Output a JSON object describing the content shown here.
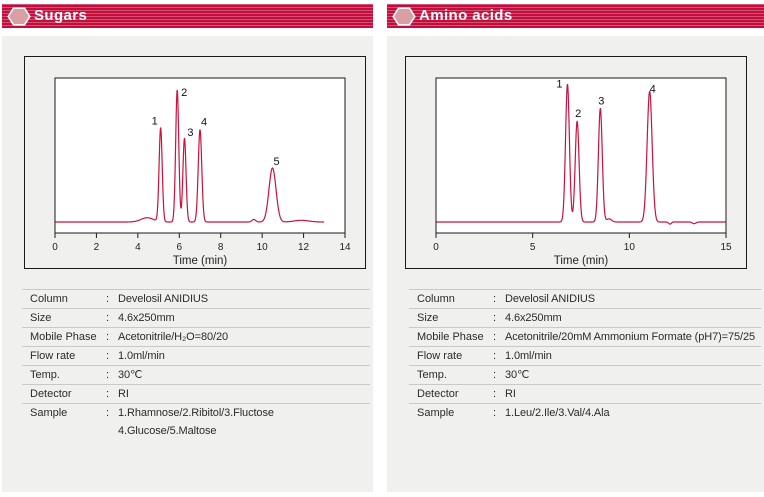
{
  "colors": {
    "band_base": "#c20e3c",
    "band_stripe": "rgba(255,255,255,0.28)",
    "band_text": "#ffffff",
    "hexagon_fill": "#d9a0a4",
    "hexagon_outline": "#ffffff",
    "panel_bg": "#f0f0ee",
    "frame_border": "#1a1a1a",
    "plot_bg": "#ffffff",
    "plot_border": "#1a1a1a",
    "trace": "#c9123c",
    "axis_text": "#1f1f1f",
    "table_text": "#2b2b2b",
    "table_divider": "#c9c9c9"
  },
  "panels": [
    {
      "title": "Sugars",
      "table": {
        "rows": [
          {
            "label": "Column",
            "value": "Develosil ANIDIUS"
          },
          {
            "label": "Size",
            "value": "4.6x250mm"
          },
          {
            "label": "Mobile Phase",
            "value": "Acetonitrile/H₂O=80/20"
          },
          {
            "label": "Flow rate",
            "value": "1.0ml/min"
          },
          {
            "label": "Temp.",
            "value": "30℃"
          },
          {
            "label": "Detector",
            "value": "RI"
          },
          {
            "label": "Sample",
            "value": "1.Rhamnose/2.Ribitol/3.Fluctose",
            "value2": "4.Glucose/5.Maltose"
          }
        ]
      }
    },
    {
      "title": "Amino acids",
      "table": {
        "rows": [
          {
            "label": "Column",
            "value": "Develosil ANIDIUS"
          },
          {
            "label": "Size",
            "value": "4.6x250mm"
          },
          {
            "label": "Mobile Phase",
            "value": "Acetonitrile/20mM Ammonium Formate (pH7)=75/25"
          },
          {
            "label": "Flow rate",
            "value": "1.0ml/min"
          },
          {
            "label": "Temp.",
            "value": "30℃"
          },
          {
            "label": "Detector",
            "value": "RI"
          },
          {
            "label": "Sample",
            "value": "1.Leu/2.Ile/3.Val/4.Ala"
          }
        ]
      }
    }
  ],
  "chart_data": [
    {
      "type": "line",
      "title": "Sugars chromatogram (Develosil ANIDIUS, RI detection)",
      "xlabel": "Time (min)",
      "ylabel": "",
      "xlim": [
        0,
        14
      ],
      "xticks": [
        0,
        2,
        4,
        6,
        8,
        10,
        12,
        14
      ],
      "grid": false,
      "legend": false,
      "trace_end_min": 13.0,
      "peaks": [
        {
          "label": "1",
          "time_min": 5.1,
          "rel_height": 0.66,
          "sigma": 0.075,
          "label_dx": -6,
          "label_dy": -4
        },
        {
          "label": "2",
          "time_min": 5.9,
          "rel_height": 0.93,
          "sigma": 0.075,
          "label_dx": 7,
          "label_dy": 6
        },
        {
          "label": "3",
          "time_min": 6.25,
          "rel_height": 0.59,
          "sigma": 0.075,
          "label_dx": 6,
          "label_dy": -2
        },
        {
          "label": "4",
          "time_min": 7.0,
          "rel_height": 0.65,
          "sigma": 0.085,
          "label_dx": 4,
          "label_dy": -4
        },
        {
          "label": "5",
          "time_min": 10.5,
          "rel_height": 0.38,
          "sigma": 0.17,
          "label_dx": 4,
          "label_dy": -3
        }
      ],
      "baseline_features": [
        {
          "time_min": 4.45,
          "rel_height": 0.03,
          "sigma": 0.3
        },
        {
          "time_min": 9.6,
          "rel_height": 0.018,
          "sigma": 0.09
        },
        {
          "time_min": 11.9,
          "rel_height": 0.012,
          "sigma": 0.35
        }
      ]
    },
    {
      "type": "line",
      "title": "Amino acids chromatogram (Develosil ANIDIUS, RI detection)",
      "xlabel": "Time (min)",
      "ylabel": "",
      "xlim": [
        0,
        15
      ],
      "xticks": [
        0,
        5,
        10,
        15
      ],
      "grid": false,
      "legend": false,
      "trace_end_min": 15.0,
      "peaks": [
        {
          "label": "1",
          "time_min": 6.8,
          "rel_height": 0.97,
          "sigma": 0.1,
          "label_dx": -8,
          "label_dy": 3
        },
        {
          "label": "2",
          "time_min": 7.3,
          "rel_height": 0.71,
          "sigma": 0.1,
          "label_dx": 1,
          "label_dy": -4
        },
        {
          "label": "3",
          "time_min": 8.5,
          "rel_height": 0.8,
          "sigma": 0.1,
          "label_dx": 1,
          "label_dy": -4
        },
        {
          "label": "4",
          "time_min": 11.05,
          "rel_height": 0.92,
          "sigma": 0.13,
          "label_dx": 3,
          "label_dy": 1
        }
      ],
      "baseline_features": [
        {
          "time_min": 8.95,
          "rel_height": 0.022,
          "sigma": 0.13
        },
        {
          "time_min": 12.1,
          "rel_height": -0.015,
          "sigma": 0.07
        },
        {
          "time_min": 13.35,
          "rel_height": -0.012,
          "sigma": 0.09
        }
      ]
    }
  ]
}
